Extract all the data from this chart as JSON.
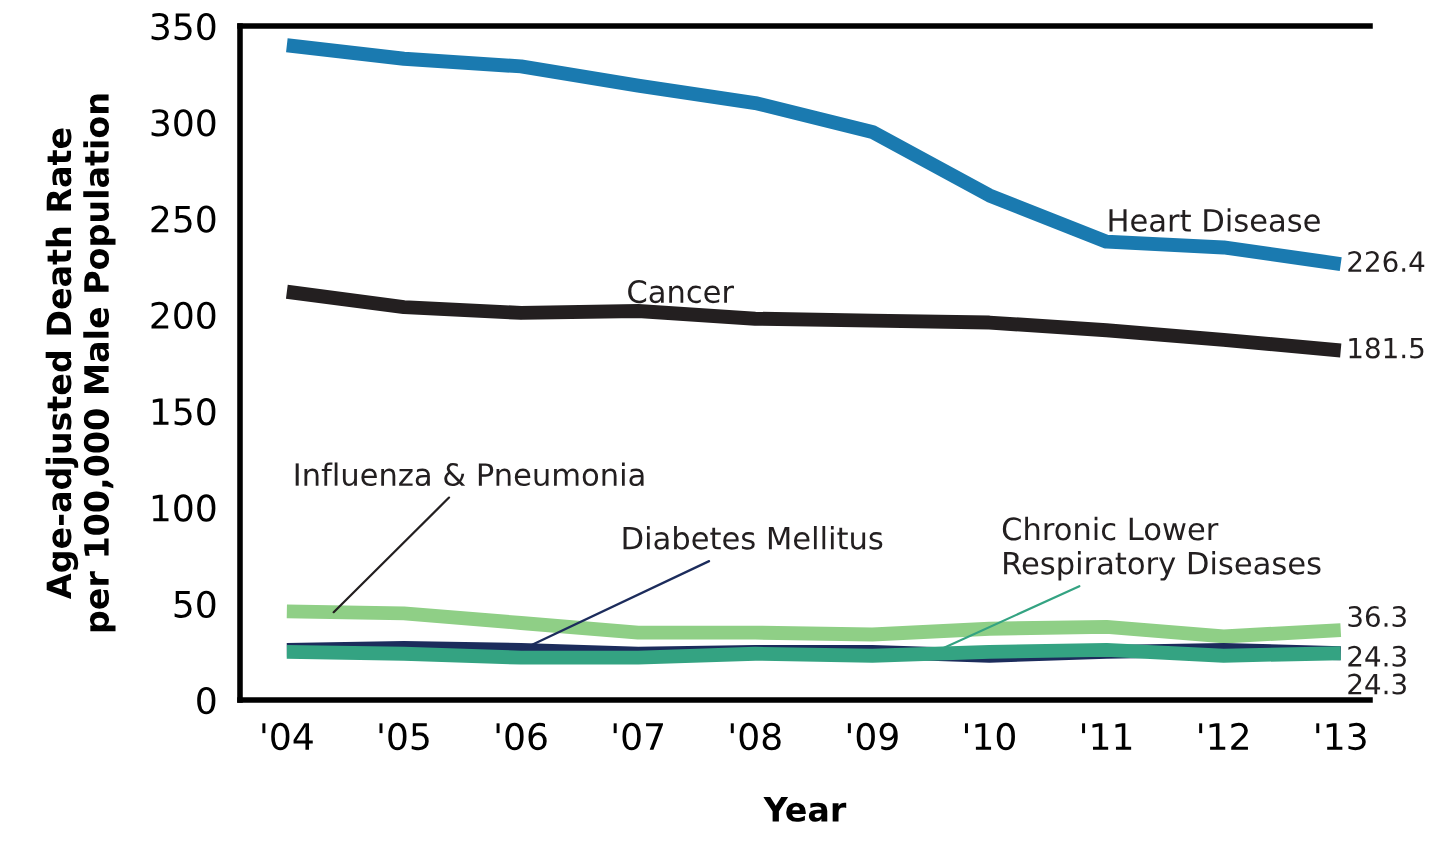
{
  "chart_data": {
    "type": "line",
    "xlabel": "Year",
    "ylabel": "Age-adjusted Death Rate\nper 100,000 Male Population",
    "categories": [
      "'04",
      "'05",
      "'06",
      "'07",
      "'08",
      "'09",
      "'10",
      "'11",
      "'12",
      "'13"
    ],
    "ylim": [
      0,
      350
    ],
    "yticks": [
      0,
      50,
      100,
      150,
      200,
      250,
      300,
      350
    ],
    "grid": false,
    "legend": false,
    "marker": "none",
    "line_style": "solid",
    "series": [
      {
        "name": "Heart Disease",
        "color": "#1a7ab0",
        "values": [
          340,
          333,
          329,
          319,
          310,
          295,
          262,
          238,
          235,
          226.4
        ],
        "value_labels": [
          null,
          null,
          null,
          null,
          null,
          null,
          null,
          null,
          null,
          "226.4"
        ]
      },
      {
        "name": "Cancer",
        "color": "#231f20",
        "values": [
          212,
          204,
          201,
          202,
          198,
          197,
          196,
          192,
          187,
          181.5
        ],
        "value_labels": [
          null,
          null,
          null,
          null,
          null,
          null,
          null,
          null,
          null,
          "181.5"
        ]
      },
      {
        "name": "Influenza & Pneumonia",
        "color": "#8fcf86",
        "values": [
          46,
          45,
          40,
          35,
          35,
          34,
          37,
          38,
          33,
          36.3
        ],
        "value_labels": [
          null,
          null,
          null,
          null,
          null,
          null,
          null,
          null,
          null,
          "36.3"
        ]
      },
      {
        "name": "Diabetes Mellitus",
        "color": "#1c2c5c",
        "values": [
          26,
          27,
          26,
          24,
          25,
          25,
          23,
          25,
          26,
          24.3
        ],
        "value_labels": [
          null,
          null,
          null,
          null,
          null,
          null,
          null,
          null,
          null,
          "24.3"
        ]
      },
      {
        "name": "Chronic Lower\nRespiratory Diseases",
        "color": "#34a382",
        "values": [
          25,
          24,
          22,
          22,
          24,
          23,
          25,
          26,
          23,
          24.3
        ],
        "value_labels": [
          null,
          null,
          null,
          null,
          null,
          null,
          null,
          null,
          null,
          "24.3"
        ]
      }
    ]
  }
}
